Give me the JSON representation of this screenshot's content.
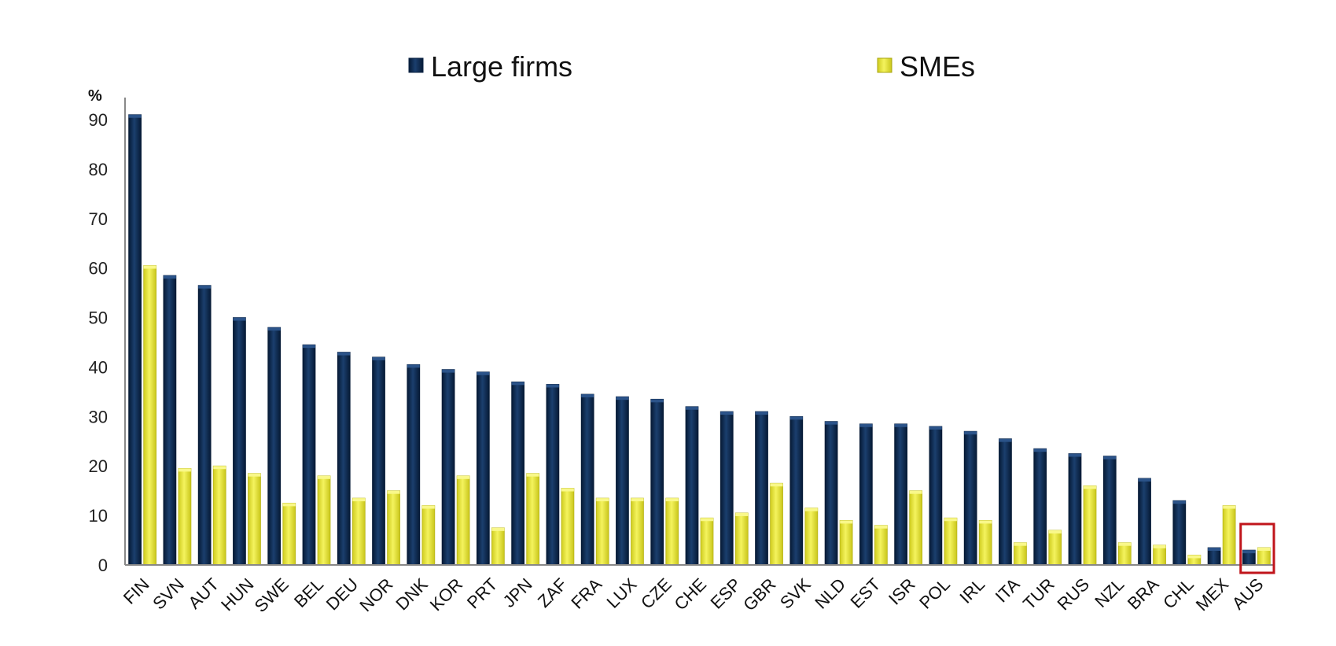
{
  "chart_data": {
    "type": "bar",
    "ylabel": "%",
    "ylim": [
      0,
      90
    ],
    "yticks": [
      0,
      10,
      20,
      30,
      40,
      50,
      60,
      70,
      80,
      90
    ],
    "legend_position": "top",
    "categories": [
      "FIN",
      "SVN",
      "AUT",
      "HUN",
      "SWE",
      "BEL",
      "DEU",
      "NOR",
      "DNK",
      "KOR",
      "PRT",
      "JPN",
      "ZAF",
      "FRA",
      "LUX",
      "CZE",
      "CHE",
      "ESP",
      "GBR",
      "SVK",
      "NLD",
      "EST",
      "ISR",
      "POL",
      "IRL",
      "ITA",
      "TUR",
      "RUS",
      "NZL",
      "BRA",
      "CHL",
      "MEX",
      "AUS"
    ],
    "series": [
      {
        "name": "Large firms",
        "color": "#0d2a4f",
        "values": [
          91,
          58.5,
          56.5,
          50,
          48,
          44.5,
          43,
          42,
          40.5,
          39.5,
          39,
          37,
          36.5,
          34.5,
          34,
          33.5,
          32,
          31,
          31,
          30,
          29,
          28.5,
          28.5,
          28,
          27,
          25.5,
          23.5,
          22.5,
          22,
          17.5,
          13,
          3.5,
          3
        ]
      },
      {
        "name": "SMEs",
        "color": "#e8e63a",
        "values": [
          60.5,
          19.5,
          20,
          18.5,
          12.5,
          18,
          13.5,
          15,
          12,
          18,
          7.5,
          18.5,
          15.5,
          13.5,
          13.5,
          13.5,
          9.5,
          10.5,
          16.5,
          11.5,
          9,
          8,
          15,
          9.5,
          9,
          4.5,
          7,
          16,
          4.5,
          4,
          2,
          12,
          3.5
        ]
      }
    ],
    "highlight_category": "AUS",
    "highlight_color": "#c0151b"
  }
}
